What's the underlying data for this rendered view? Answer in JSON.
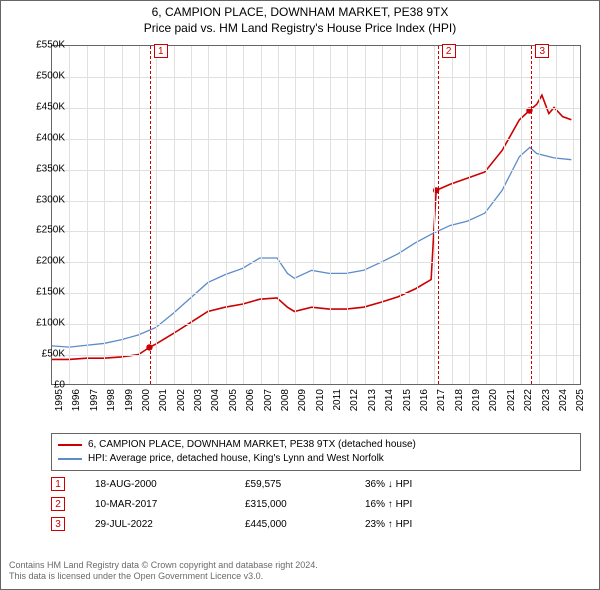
{
  "title": {
    "line1": "6, CAMPION PLACE, DOWNHAM MARKET, PE38 9TX",
    "line2": "Price paid vs. HM Land Registry's House Price Index (HPI)"
  },
  "chart": {
    "type": "line",
    "background_color": "#ffffff",
    "grid_color": "#e0e0e0",
    "border_color": "#666666",
    "x_range": [
      1995,
      2025.5
    ],
    "y_range": [
      0,
      550000
    ],
    "y_ticks": [
      0,
      50000,
      100000,
      150000,
      200000,
      250000,
      300000,
      350000,
      400000,
      450000,
      500000,
      550000
    ],
    "y_tick_labels": [
      "£0",
      "£50K",
      "£100K",
      "£150K",
      "£200K",
      "£250K",
      "£300K",
      "£350K",
      "£400K",
      "£450K",
      "£500K",
      "£550K"
    ],
    "x_ticks": [
      1995,
      1996,
      1997,
      1998,
      1999,
      2000,
      2001,
      2002,
      2003,
      2004,
      2005,
      2006,
      2007,
      2008,
      2009,
      2010,
      2011,
      2012,
      2013,
      2014,
      2015,
      2016,
      2017,
      2018,
      2019,
      2020,
      2021,
      2022,
      2023,
      2024,
      2025
    ],
    "label_fontsize": 10,
    "series": [
      {
        "name": "price_paid",
        "color": "#cc0000",
        "width": 1.6,
        "points": [
          [
            1995,
            40000
          ],
          [
            1996,
            40000
          ],
          [
            1997,
            42000
          ],
          [
            1998,
            42000
          ],
          [
            1999,
            44000
          ],
          [
            2000,
            48000
          ],
          [
            2000.63,
            59575
          ],
          [
            2001,
            65000
          ],
          [
            2002,
            82000
          ],
          [
            2003,
            100000
          ],
          [
            2004,
            118000
          ],
          [
            2005,
            125000
          ],
          [
            2006,
            130000
          ],
          [
            2007,
            138000
          ],
          [
            2008,
            140000
          ],
          [
            2008.6,
            125000
          ],
          [
            2009,
            118000
          ],
          [
            2010,
            125000
          ],
          [
            2011,
            122000
          ],
          [
            2012,
            122000
          ],
          [
            2013,
            125000
          ],
          [
            2014,
            133000
          ],
          [
            2015,
            142000
          ],
          [
            2016,
            155000
          ],
          [
            2016.9,
            170000
          ],
          [
            2017.19,
            315000
          ],
          [
            2018,
            325000
          ],
          [
            2019,
            335000
          ],
          [
            2020,
            345000
          ],
          [
            2021,
            380000
          ],
          [
            2022,
            430000
          ],
          [
            2022.58,
            445000
          ],
          [
            2023,
            455000
          ],
          [
            2023.3,
            470000
          ],
          [
            2023.7,
            440000
          ],
          [
            2024,
            450000
          ],
          [
            2024.5,
            435000
          ],
          [
            2025,
            430000
          ]
        ],
        "markers": [
          {
            "x": 2000.63,
            "y": 59575
          },
          {
            "x": 2017.19,
            "y": 315000
          },
          {
            "x": 2022.58,
            "y": 445000
          }
        ]
      },
      {
        "name": "hpi",
        "color": "#5b8bc9",
        "width": 1.3,
        "points": [
          [
            1995,
            62000
          ],
          [
            1996,
            60000
          ],
          [
            1997,
            63000
          ],
          [
            1998,
            66000
          ],
          [
            1999,
            72000
          ],
          [
            2000,
            80000
          ],
          [
            2001,
            92000
          ],
          [
            2002,
            115000
          ],
          [
            2003,
            140000
          ],
          [
            2004,
            165000
          ],
          [
            2005,
            178000
          ],
          [
            2006,
            188000
          ],
          [
            2007,
            205000
          ],
          [
            2008,
            205000
          ],
          [
            2008.6,
            180000
          ],
          [
            2009,
            172000
          ],
          [
            2010,
            185000
          ],
          [
            2011,
            180000
          ],
          [
            2012,
            180000
          ],
          [
            2013,
            185000
          ],
          [
            2014,
            198000
          ],
          [
            2015,
            212000
          ],
          [
            2016,
            230000
          ],
          [
            2017,
            245000
          ],
          [
            2018,
            258000
          ],
          [
            2019,
            265000
          ],
          [
            2020,
            278000
          ],
          [
            2021,
            315000
          ],
          [
            2022,
            370000
          ],
          [
            2022.6,
            385000
          ],
          [
            2023,
            375000
          ],
          [
            2024,
            368000
          ],
          [
            2025,
            365000
          ]
        ]
      }
    ],
    "events": [
      {
        "n": "1",
        "x": 2000.63
      },
      {
        "n": "2",
        "x": 2017.19
      },
      {
        "n": "3",
        "x": 2022.58
      }
    ]
  },
  "legend": {
    "series1": {
      "color": "#cc0000",
      "label": "6, CAMPION PLACE, DOWNHAM MARKET, PE38 9TX (detached house)"
    },
    "series2": {
      "color": "#5b8bc9",
      "label": "HPI: Average price, detached house, King's Lynn and West Norfolk"
    }
  },
  "events_table": [
    {
      "n": "1",
      "date": "18-AUG-2000",
      "price": "£59,575",
      "pct": "36% ↓ HPI"
    },
    {
      "n": "2",
      "date": "10-MAR-2017",
      "price": "£315,000",
      "pct": "16% ↑ HPI"
    },
    {
      "n": "3",
      "date": "29-JUL-2022",
      "price": "£445,000",
      "pct": "23% ↑ HPI"
    }
  ],
  "footer": {
    "line1": "Contains HM Land Registry data © Crown copyright and database right 2024.",
    "line2": "This data is licensed under the Open Government Licence v3.0."
  }
}
